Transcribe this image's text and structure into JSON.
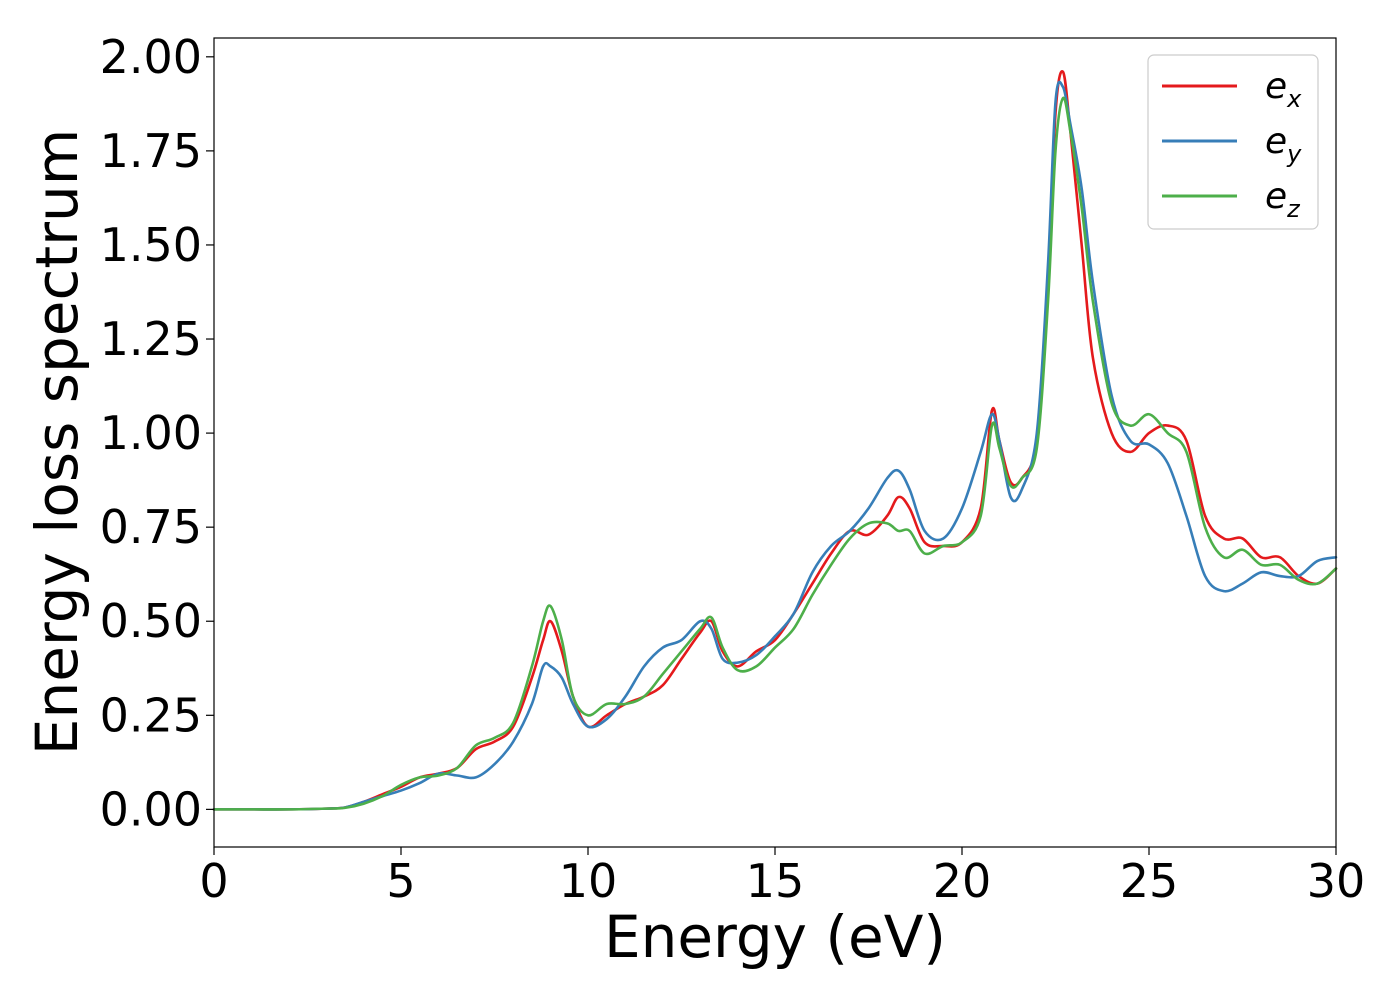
{
  "chart_data": {
    "type": "line",
    "title": "",
    "xlabel": "Energy (eV)",
    "ylabel": "Energy loss spectrum",
    "xlim": [
      0,
      30
    ],
    "ylim": [
      -0.1,
      2.05
    ],
    "xticks": [
      0,
      5,
      10,
      15,
      20,
      25,
      30
    ],
    "xtick_labels": [
      "0",
      "5",
      "10",
      "15",
      "20",
      "25",
      "30"
    ],
    "yticks": [
      0,
      0.25,
      0.5,
      0.75,
      1.0,
      1.25,
      1.5,
      1.75,
      2.0
    ],
    "ytick_labels": [
      "0.00",
      "0.25",
      "0.50",
      "0.75",
      "1.00",
      "1.25",
      "1.50",
      "1.75",
      "2.00"
    ],
    "grid": false,
    "legend_position": "top-right",
    "series": [
      {
        "name": "e_x",
        "label_base": "e",
        "label_sub": "x",
        "color": "#e41a1c",
        "x": [
          0,
          1,
          2,
          3,
          3.5,
          4,
          4.5,
          5,
          5.5,
          6,
          6.5,
          7,
          7.5,
          8,
          8.5,
          8.8,
          9,
          9.3,
          9.6,
          10,
          10.5,
          11,
          11.5,
          12,
          12.5,
          13,
          13.3,
          13.6,
          14,
          14.5,
          15,
          15.5,
          16,
          16.5,
          17,
          17.5,
          18,
          18.3,
          18.6,
          19,
          19.5,
          20,
          20.5,
          20.8,
          21,
          21.3,
          21.6,
          22,
          22.3,
          22.5,
          22.7,
          22.9,
          23.2,
          23.5,
          24,
          24.5,
          25,
          25.5,
          26,
          26.5,
          27,
          27.5,
          28,
          28.5,
          29,
          29.5,
          30
        ],
        "y": [
          0,
          0,
          0,
          0.002,
          0.005,
          0.02,
          0.04,
          0.06,
          0.085,
          0.095,
          0.11,
          0.16,
          0.18,
          0.22,
          0.35,
          0.45,
          0.5,
          0.42,
          0.3,
          0.22,
          0.25,
          0.28,
          0.3,
          0.33,
          0.4,
          0.47,
          0.5,
          0.42,
          0.38,
          0.42,
          0.45,
          0.52,
          0.6,
          0.68,
          0.74,
          0.73,
          0.78,
          0.83,
          0.8,
          0.71,
          0.7,
          0.71,
          0.8,
          1.06,
          0.98,
          0.87,
          0.88,
          0.98,
          1.4,
          1.85,
          1.96,
          1.8,
          1.5,
          1.2,
          1.0,
          0.95,
          1.0,
          1.02,
          0.98,
          0.78,
          0.72,
          0.72,
          0.67,
          0.67,
          0.62,
          0.6,
          0.64
        ]
      },
      {
        "name": "e_y",
        "label_base": "e",
        "label_sub": "y",
        "color": "#377eb8",
        "x": [
          0,
          1,
          2,
          3,
          3.5,
          4,
          4.5,
          5,
          5.5,
          6,
          6.5,
          7,
          7.5,
          8,
          8.5,
          8.8,
          9,
          9.3,
          9.6,
          10,
          10.5,
          11,
          11.5,
          12,
          12.5,
          13,
          13.3,
          13.6,
          14,
          14.5,
          15,
          15.5,
          16,
          16.5,
          17,
          17.5,
          18,
          18.3,
          18.6,
          19,
          19.5,
          20,
          20.5,
          20.8,
          21,
          21.3,
          21.6,
          22,
          22.3,
          22.5,
          22.7,
          22.9,
          23.2,
          23.5,
          24,
          24.5,
          25,
          25.5,
          26,
          26.5,
          27,
          27.5,
          28,
          28.5,
          29,
          29.5,
          30
        ],
        "y": [
          0,
          0,
          0,
          0.002,
          0.005,
          0.02,
          0.035,
          0.05,
          0.07,
          0.095,
          0.09,
          0.085,
          0.12,
          0.18,
          0.28,
          0.38,
          0.38,
          0.35,
          0.28,
          0.22,
          0.24,
          0.3,
          0.38,
          0.43,
          0.45,
          0.5,
          0.48,
          0.4,
          0.39,
          0.41,
          0.46,
          0.52,
          0.63,
          0.7,
          0.74,
          0.8,
          0.88,
          0.9,
          0.85,
          0.74,
          0.72,
          0.8,
          0.95,
          1.05,
          0.98,
          0.83,
          0.85,
          1.0,
          1.45,
          1.88,
          1.92,
          1.82,
          1.65,
          1.4,
          1.1,
          0.98,
          0.97,
          0.92,
          0.78,
          0.62,
          0.58,
          0.6,
          0.63,
          0.62,
          0.62,
          0.66,
          0.67
        ]
      },
      {
        "name": "e_z",
        "label_base": "e",
        "label_sub": "z",
        "color": "#4daf4a",
        "x": [
          0,
          1,
          2,
          3,
          3.5,
          4,
          4.5,
          5,
          5.5,
          6,
          6.5,
          7,
          7.5,
          8,
          8.5,
          8.8,
          9,
          9.3,
          9.6,
          10,
          10.5,
          11,
          11.5,
          12,
          12.5,
          13,
          13.3,
          13.6,
          14,
          14.5,
          15,
          15.5,
          16,
          16.5,
          17,
          17.5,
          18,
          18.3,
          18.6,
          19,
          19.5,
          20,
          20.5,
          20.8,
          21,
          21.3,
          21.6,
          22,
          22.3,
          22.5,
          22.7,
          22.9,
          23.2,
          23.5,
          24,
          24.5,
          25,
          25.5,
          26,
          26.5,
          27,
          27.5,
          28,
          28.5,
          29,
          29.5,
          30
        ],
        "y": [
          0,
          0,
          0,
          0.002,
          0.004,
          0.015,
          0.035,
          0.065,
          0.085,
          0.09,
          0.11,
          0.17,
          0.19,
          0.23,
          0.38,
          0.5,
          0.54,
          0.45,
          0.3,
          0.25,
          0.28,
          0.28,
          0.3,
          0.36,
          0.42,
          0.48,
          0.51,
          0.43,
          0.37,
          0.38,
          0.43,
          0.48,
          0.57,
          0.65,
          0.72,
          0.76,
          0.76,
          0.74,
          0.74,
          0.68,
          0.7,
          0.71,
          0.78,
          1.02,
          0.96,
          0.86,
          0.88,
          0.96,
          1.35,
          1.75,
          1.89,
          1.8,
          1.6,
          1.35,
          1.08,
          1.02,
          1.05,
          1.0,
          0.95,
          0.75,
          0.67,
          0.69,
          0.65,
          0.65,
          0.61,
          0.6,
          0.64
        ]
      }
    ]
  }
}
